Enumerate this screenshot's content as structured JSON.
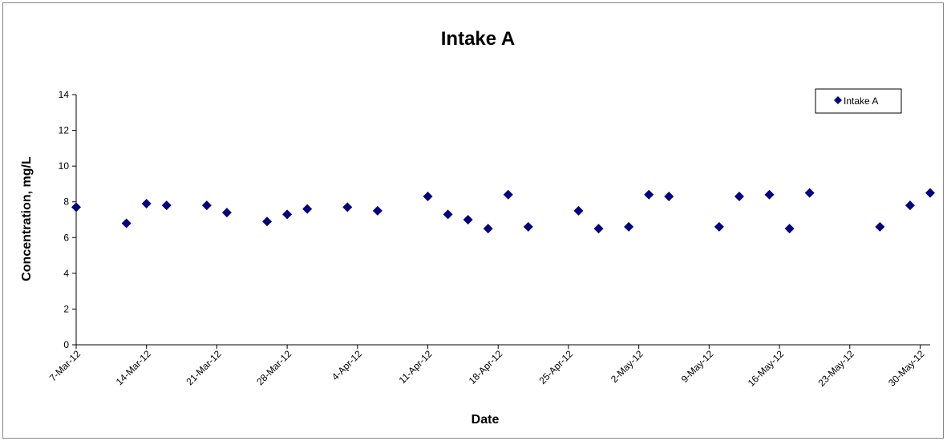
{
  "chart_data": {
    "type": "scatter",
    "title": "Intake A",
    "xlabel": "Date",
    "ylabel": "Concentration, mg/L",
    "ylim": [
      0,
      14
    ],
    "yticks": [
      0,
      2,
      4,
      6,
      8,
      10,
      12,
      14
    ],
    "xlim": [
      "2012-03-07",
      "2012-05-31"
    ],
    "xtick_labels": [
      "7-Mar-12",
      "14-Mar-12",
      "21-Mar-12",
      "28-Mar-12",
      "4-Apr-12",
      "11-Apr-12",
      "18-Apr-12",
      "25-Apr-12",
      "2-May-12",
      "9-May-12",
      "16-May-12",
      "23-May-12",
      "30-May-12"
    ],
    "xtick_dates": [
      "2012-03-07",
      "2012-03-14",
      "2012-03-21",
      "2012-03-28",
      "2012-04-04",
      "2012-04-11",
      "2012-04-18",
      "2012-04-25",
      "2012-05-02",
      "2012-05-09",
      "2012-05-16",
      "2012-05-23",
      "2012-05-30"
    ],
    "grid": false,
    "legend_position": "top-right",
    "series": [
      {
        "name": "Intake A",
        "color": "#000080",
        "marker": "diamond",
        "points": [
          {
            "x": "2012-03-07",
            "y": 7.7
          },
          {
            "x": "2012-03-12",
            "y": 6.8
          },
          {
            "x": "2012-03-14",
            "y": 7.9
          },
          {
            "x": "2012-03-16",
            "y": 7.8
          },
          {
            "x": "2012-03-20",
            "y": 7.8
          },
          {
            "x": "2012-03-22",
            "y": 7.4
          },
          {
            "x": "2012-03-26",
            "y": 6.9
          },
          {
            "x": "2012-03-28",
            "y": 7.3
          },
          {
            "x": "2012-03-30",
            "y": 7.6
          },
          {
            "x": "2012-04-03",
            "y": 7.7
          },
          {
            "x": "2012-04-06",
            "y": 7.5
          },
          {
            "x": "2012-04-11",
            "y": 8.3
          },
          {
            "x": "2012-04-13",
            "y": 7.3
          },
          {
            "x": "2012-04-15",
            "y": 7.0
          },
          {
            "x": "2012-04-17",
            "y": 6.5
          },
          {
            "x": "2012-04-19",
            "y": 8.4
          },
          {
            "x": "2012-04-21",
            "y": 6.6
          },
          {
            "x": "2012-04-26",
            "y": 7.5
          },
          {
            "x": "2012-04-28",
            "y": 6.5
          },
          {
            "x": "2012-05-01",
            "y": 6.6
          },
          {
            "x": "2012-05-03",
            "y": 8.4
          },
          {
            "x": "2012-05-05",
            "y": 8.3
          },
          {
            "x": "2012-05-10",
            "y": 6.6
          },
          {
            "x": "2012-05-12",
            "y": 8.3
          },
          {
            "x": "2012-05-15",
            "y": 8.4
          },
          {
            "x": "2012-05-17",
            "y": 6.5
          },
          {
            "x": "2012-05-19",
            "y": 8.5
          },
          {
            "x": "2012-05-26",
            "y": 6.6
          },
          {
            "x": "2012-05-29",
            "y": 7.8
          },
          {
            "x": "2012-05-31",
            "y": 8.5
          }
        ]
      }
    ]
  }
}
